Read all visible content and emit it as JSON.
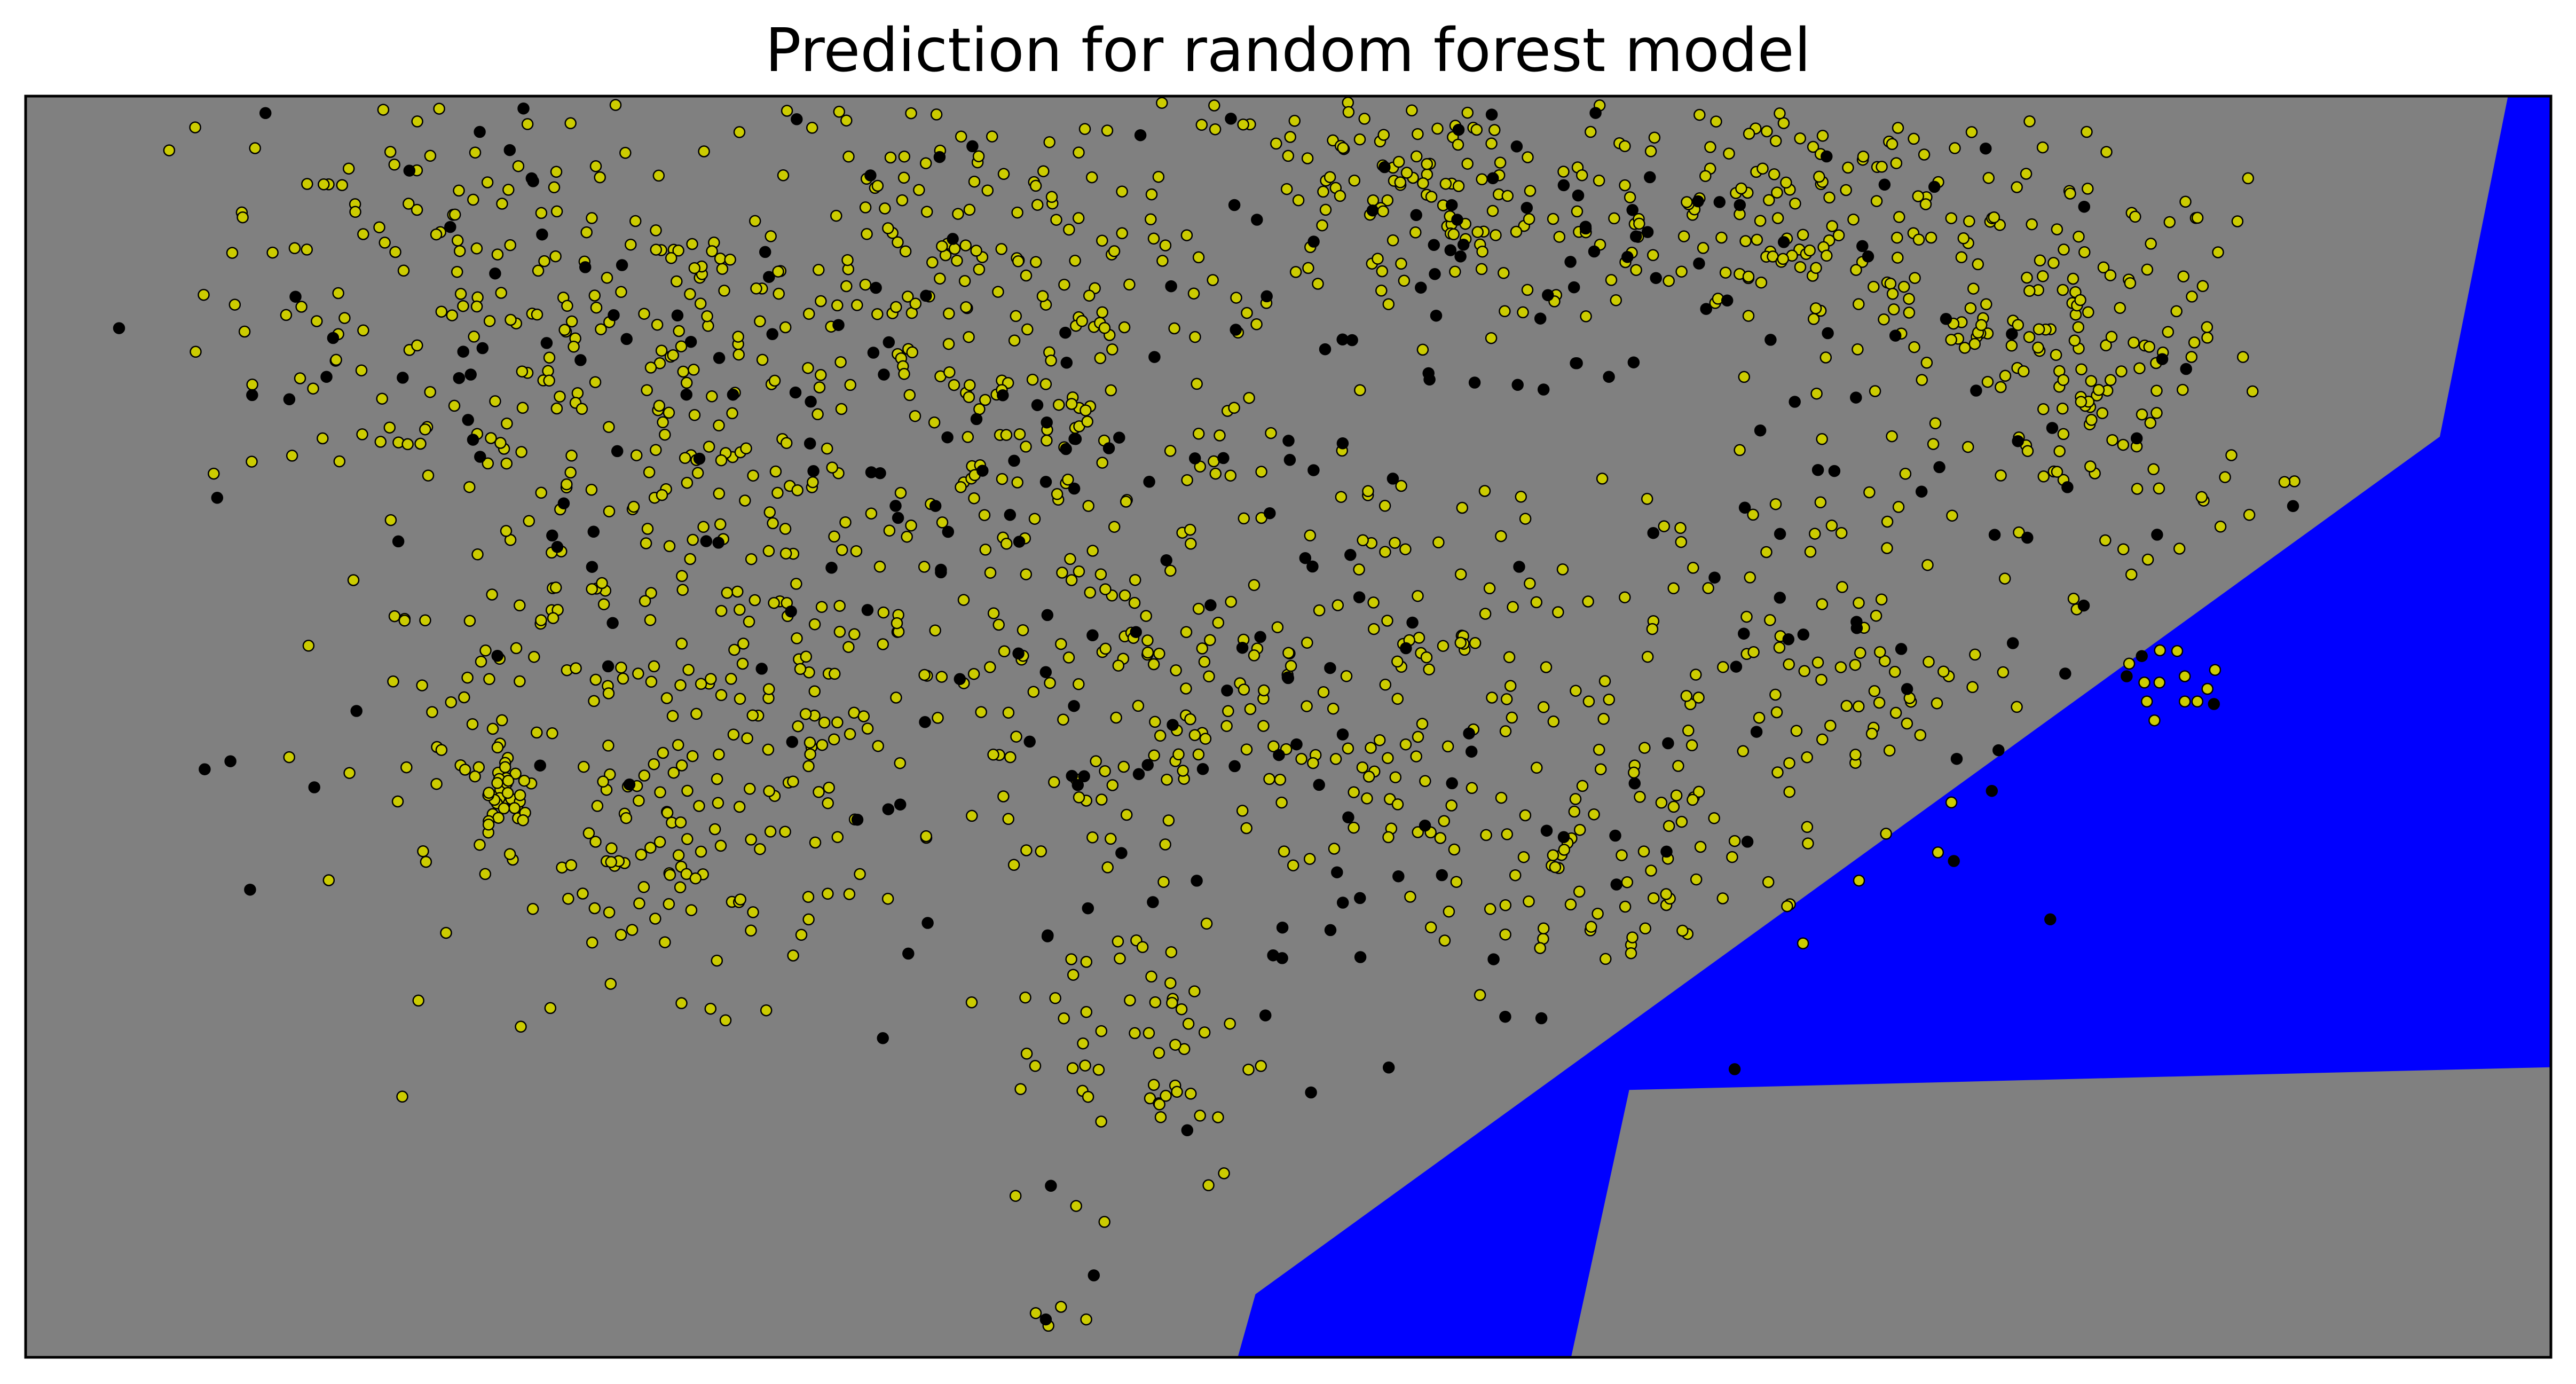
{
  "chart_data": {
    "type": "scatter",
    "title": "Prediction for random forest model",
    "xlabel": "",
    "ylabel": "",
    "xlim": [
      0,
      1
    ],
    "ylim": [
      0,
      1
    ],
    "grid": false,
    "axis_ticks": false,
    "legend": "none",
    "background_region": {
      "name": "",
      "color": "#808080"
    },
    "decision_region": {
      "name": "",
      "color": "#0000ff",
      "polygon": [
        [
          0.48,
          0.0
        ],
        [
          0.487,
          0.05
        ],
        [
          0.956,
          0.73
        ],
        [
          0.983,
          1.0
        ],
        [
          1.0,
          1.0
        ],
        [
          1.0,
          0.23
        ],
        [
          0.635,
          0.212
        ],
        [
          0.612,
          0.0
        ]
      ]
    },
    "series": [
      {
        "marker_color": "#cccc00",
        "edge_color": "#000000",
        "count_approx": 1800,
        "clusters": [
          {
            "cx": 0.16,
            "cy": 0.85,
            "sx": 0.045,
            "sy": 0.1,
            "n": 130
          },
          {
            "cx": 0.26,
            "cy": 0.8,
            "sx": 0.05,
            "sy": 0.09,
            "n": 140
          },
          {
            "cx": 0.37,
            "cy": 0.87,
            "sx": 0.05,
            "sy": 0.08,
            "n": 140
          },
          {
            "cx": 0.42,
            "cy": 0.72,
            "sx": 0.045,
            "sy": 0.07,
            "n": 100
          },
          {
            "cx": 0.55,
            "cy": 0.92,
            "sx": 0.05,
            "sy": 0.05,
            "n": 140
          },
          {
            "cx": 0.69,
            "cy": 0.92,
            "sx": 0.05,
            "sy": 0.05,
            "n": 110
          },
          {
            "cx": 0.76,
            "cy": 0.83,
            "sx": 0.04,
            "sy": 0.07,
            "n": 110
          },
          {
            "cx": 0.83,
            "cy": 0.77,
            "sx": 0.03,
            "sy": 0.08,
            "n": 100
          },
          {
            "cx": 0.3,
            "cy": 0.55,
            "sx": 0.05,
            "sy": 0.09,
            "n": 140
          },
          {
            "cx": 0.2,
            "cy": 0.5,
            "sx": 0.04,
            "sy": 0.1,
            "n": 90
          },
          {
            "cx": 0.26,
            "cy": 0.4,
            "sx": 0.03,
            "sy": 0.05,
            "n": 70
          },
          {
            "cx": 0.45,
            "cy": 0.5,
            "sx": 0.05,
            "sy": 0.08,
            "n": 120
          },
          {
            "cx": 0.55,
            "cy": 0.55,
            "sx": 0.05,
            "sy": 0.09,
            "n": 120
          },
          {
            "cx": 0.62,
            "cy": 0.38,
            "sx": 0.03,
            "sy": 0.05,
            "n": 70
          },
          {
            "cx": 0.71,
            "cy": 0.55,
            "sx": 0.035,
            "sy": 0.08,
            "n": 90
          },
          {
            "cx": 0.44,
            "cy": 0.25,
            "sx": 0.025,
            "sy": 0.06,
            "n": 55
          },
          {
            "cx": 0.19,
            "cy": 0.45,
            "sx": 0.006,
            "sy": 0.02,
            "n": 35
          }
        ],
        "extra_points": [
          [
            0.726,
            0.378
          ],
          [
            0.833,
            0.55
          ],
          [
            0.845,
            0.535
          ],
          [
            0.84,
            0.52
          ],
          [
            0.852,
            0.56
          ],
          [
            0.855,
            0.54
          ],
          [
            0.864,
            0.53
          ],
          [
            0.867,
            0.545
          ],
          [
            0.839,
            0.535
          ],
          [
            0.86,
            0.52
          ],
          [
            0.843,
            0.505
          ],
          [
            0.855,
            0.52
          ],
          [
            0.392,
            0.128
          ],
          [
            0.4,
            0.035
          ],
          [
            0.405,
            0.025
          ],
          [
            0.42,
            0.03
          ],
          [
            0.416,
            0.12
          ],
          [
            0.41,
            0.04
          ]
        ]
      },
      {
        "marker_color": "#000000",
        "edge_color": "#000000",
        "count_approx": 320,
        "clusters": [
          {
            "cx": 0.22,
            "cy": 0.75,
            "sx": 0.08,
            "sy": 0.18,
            "n": 70
          },
          {
            "cx": 0.4,
            "cy": 0.75,
            "sx": 0.07,
            "sy": 0.15,
            "n": 70
          },
          {
            "cx": 0.58,
            "cy": 0.88,
            "sx": 0.07,
            "sy": 0.07,
            "n": 50
          },
          {
            "cx": 0.74,
            "cy": 0.68,
            "sx": 0.06,
            "sy": 0.15,
            "n": 60
          },
          {
            "cx": 0.5,
            "cy": 0.45,
            "sx": 0.08,
            "sy": 0.12,
            "n": 60
          }
        ],
        "extra_points": [
          [
            0.037,
            0.816
          ],
          [
            0.406,
            0.136
          ],
          [
            0.404,
            0.03
          ],
          [
            0.423,
            0.065
          ],
          [
            0.46,
            0.18
          ],
          [
            0.509,
            0.21
          ],
          [
            0.838,
            0.556
          ],
          [
            0.832,
            0.54
          ]
        ]
      }
    ]
  }
}
